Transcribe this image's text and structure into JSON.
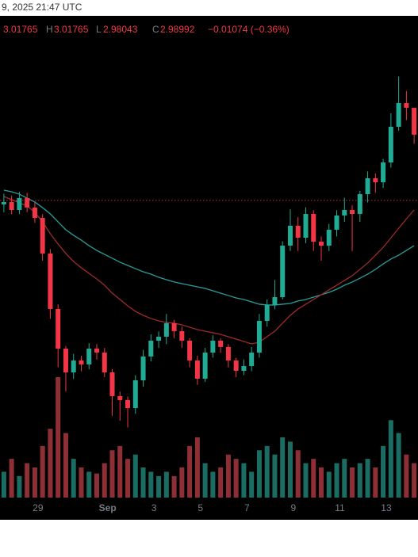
{
  "status_time": "9, 2025 21:47 UTC",
  "chart_data": {
    "type": "candlestick",
    "header": {
      "high_label": "H",
      "low_label": "L",
      "close_label": "C",
      "change": "−0.01074 (−0.36%)"
    },
    "categories": [
      null,
      null,
      null,
      null,
      null,
      null,
      null,
      null,
      null,
      null,
      null,
      null,
      null,
      null,
      null,
      null,
      null,
      null,
      null,
      null,
      null,
      null,
      null,
      null,
      null,
      null,
      null,
      null,
      null,
      null,
      null,
      null,
      null,
      null,
      null,
      null,
      null,
      null,
      null,
      null,
      null,
      null,
      null,
      null,
      null,
      null,
      null,
      null,
      null,
      null,
      null,
      null,
      null,
      null
    ],
    "open": [
      2.918,
      2.9205,
      2.9123,
      2.9246,
      2.9148,
      2.9041,
      2.8674,
      2.8102,
      2.7693,
      2.7448,
      2.7571,
      2.753,
      2.7693,
      2.7652,
      2.7448,
      2.7203,
      2.7162,
      2.708,
      2.7366,
      2.7612,
      2.7775,
      2.7816,
      2.7955,
      2.7873,
      2.7775,
      2.7571,
      2.7383,
      2.7652,
      2.7775,
      2.771,
      2.7571,
      2.7464,
      2.7513,
      2.7652,
      2.7979,
      2.8143,
      2.8224,
      2.8755,
      2.896,
      2.8837,
      2.9082,
      2.8796,
      2.8755,
      2.8919,
      2.9066,
      2.9123,
      2.9082,
      2.9286,
      2.945,
      2.9409,
      2.9613,
      2.9981,
      3.0226,
      3.01765
    ],
    "high": [
      2.929,
      2.927,
      2.931,
      2.93,
      2.92,
      2.908,
      2.872,
      2.815,
      2.772,
      2.764,
      2.762,
      2.775,
      2.774,
      2.77,
      2.748,
      2.725,
      2.72,
      2.742,
      2.768,
      2.784,
      2.787,
      2.805,
      2.799,
      2.792,
      2.78,
      2.762,
      2.77,
      2.783,
      2.78,
      2.774,
      2.76,
      2.758,
      2.771,
      2.805,
      2.82,
      2.84,
      2.88,
      2.913,
      2.905,
      2.915,
      2.912,
      2.885,
      2.898,
      2.912,
      2.925,
      2.917,
      2.932,
      2.952,
      2.95,
      2.965,
      3.012,
      3.05,
      3.035,
      3.01765
    ],
    "low": [
      2.91,
      2.908,
      2.908,
      2.91,
      2.899,
      2.86,
      2.8,
      2.75,
      2.725,
      2.738,
      2.746,
      2.748,
      2.758,
      2.74,
      2.7,
      2.695,
      2.688,
      2.702,
      2.73,
      2.756,
      2.77,
      2.774,
      2.78,
      2.77,
      2.75,
      2.732,
      2.735,
      2.76,
      2.765,
      2.75,
      2.74,
      2.742,
      2.746,
      2.76,
      2.792,
      2.81,
      2.82,
      2.87,
      2.87,
      2.878,
      2.87,
      2.86,
      2.87,
      2.885,
      2.9,
      2.87,
      2.9,
      2.92,
      2.93,
      2.935,
      2.956,
      2.994,
      3.005,
      2.98043
    ],
    "close": [
      2.9205,
      2.9123,
      2.9246,
      2.9148,
      2.9041,
      2.8674,
      2.8102,
      2.7693,
      2.7448,
      2.7571,
      2.753,
      2.7693,
      2.7652,
      2.7448,
      2.7203,
      2.7162,
      2.708,
      2.7366,
      2.7612,
      2.7775,
      2.7816,
      2.7955,
      2.7873,
      2.7775,
      2.7571,
      2.7383,
      2.7652,
      2.7775,
      2.771,
      2.7571,
      2.7464,
      2.7513,
      2.7652,
      2.7979,
      2.8143,
      2.8224,
      2.8755,
      2.896,
      2.8837,
      2.9082,
      2.8796,
      2.8755,
      2.8919,
      2.9066,
      2.9123,
      2.9082,
      2.9286,
      2.945,
      2.9409,
      2.9613,
      2.9981,
      3.0226,
      3.0177,
      2.98992
    ],
    "volume": [
      30,
      45,
      25,
      40,
      35,
      60,
      80,
      140,
      75,
      45,
      35,
      30,
      28,
      40,
      55,
      60,
      45,
      50,
      35,
      30,
      25,
      30,
      25,
      35,
      60,
      70,
      40,
      30,
      35,
      50,
      45,
      40,
      30,
      55,
      60,
      50,
      70,
      65,
      55,
      40,
      45,
      35,
      30,
      40,
      45,
      35,
      40,
      45,
      35,
      60,
      90,
      75,
      50,
      40
    ],
    "series": [
      {
        "color": "#2a9d9a",
        "values": [
          2.9327,
          2.9311,
          2.9286,
          2.9245,
          2.9205,
          2.9147,
          2.9082,
          2.9,
          2.8919,
          2.8862,
          2.8812,
          2.8755,
          2.8706,
          2.8665,
          2.8625,
          2.8584,
          2.8551,
          2.8518,
          2.8486,
          2.8461,
          2.8429,
          2.8404,
          2.838,
          2.8363,
          2.8347,
          2.833,
          2.8314,
          2.829,
          2.8265,
          2.8241,
          2.8216,
          2.82,
          2.8175,
          2.8151,
          2.8143,
          2.8143,
          2.8151,
          2.8159,
          2.8184,
          2.82,
          2.8224,
          2.8249,
          2.8273,
          2.8306,
          2.8347,
          2.838,
          2.842,
          2.8461,
          2.851,
          2.8567,
          2.8617,
          2.8657,
          2.8706,
          2.8755
        ]
      },
      {
        "color": "#9e2a2b",
        "values": [
          2.9262,
          2.9229,
          2.9196,
          2.9164,
          2.9098,
          2.9,
          2.8878,
          2.8772,
          2.8674,
          2.8592,
          2.8527,
          2.8469,
          2.8412,
          2.8347,
          2.8265,
          2.82,
          2.8134,
          2.8077,
          2.8036,
          2.8004,
          2.7979,
          2.7963,
          2.7955,
          2.7938,
          2.7914,
          2.7889,
          2.7873,
          2.7857,
          2.784,
          2.7816,
          2.7791,
          2.7767,
          2.7742,
          2.7759,
          2.7816,
          2.7873,
          2.7955,
          2.8036,
          2.8102,
          2.8151,
          2.82,
          2.8249,
          2.8298,
          2.8347,
          2.8396,
          2.8445,
          2.851,
          2.8576,
          2.8657,
          2.8737,
          2.8835,
          2.8933,
          2.9031,
          2.9123
        ]
      }
    ],
    "price_line": 2.9221,
    "up_color": "#22ab94",
    "down_color": "#f23645",
    "up_volume_color": "#1b6d63",
    "down_volume_color": "#8e2f36",
    "ylim": [
      2.5928,
      3.1125
    ],
    "volume_ylim": [
      0,
      560
    ],
    "xlim": [
      -0.5,
      53.5
    ],
    "xticks": [
      {
        "value": 4.4,
        "label": "29"
      },
      {
        "value": 13.4,
        "label": "Sep"
      },
      {
        "value": 19.4,
        "label": "3"
      },
      {
        "value": 25.4,
        "label": "5"
      },
      {
        "value": 31.4,
        "label": "7"
      },
      {
        "value": 37.4,
        "label": "9"
      },
      {
        "value": 43.4,
        "label": "11"
      },
      {
        "value": 49.4,
        "label": "13"
      }
    ]
  }
}
